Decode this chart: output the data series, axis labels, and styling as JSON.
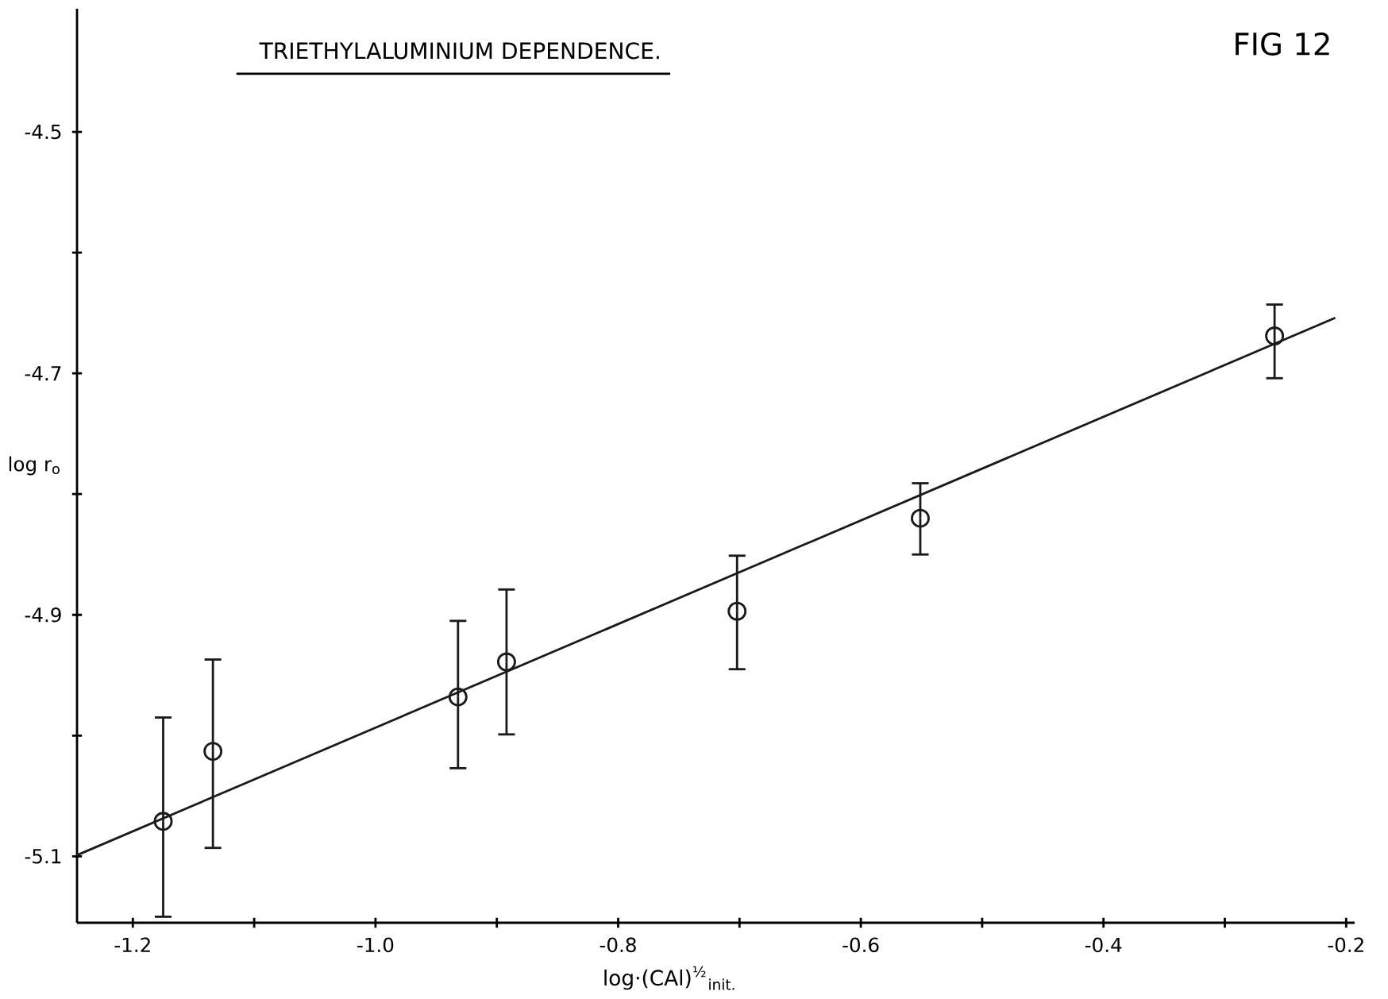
{
  "chart_data": {
    "type": "scatter",
    "title": "TRIETHYLALUMINIUM DEPENDENCE.",
    "xlabel": "log·(CAl)$^{½}$$_{init.}$",
    "ylabel": "log r$_{o}$",
    "annotations": [
      "FIG 12"
    ],
    "series": [
      {
        "color": "#1a1a1a",
        "marker": "circle",
        "x": [
          -1.175,
          -1.134,
          -0.932,
          -0.892,
          -0.702,
          -0.551,
          -0.259
        ],
        "values": [
          -5.071,
          -5.013,
          -4.968,
          -4.939,
          -4.897,
          -4.82,
          -4.669
        ],
        "errors": [
          [
            -5.15,
            -4.985
          ],
          [
            -5.093,
            -4.937
          ],
          [
            -5.027,
            -4.905
          ],
          [
            -4.999,
            -4.879
          ],
          [
            -4.945,
            -4.851
          ],
          [
            -4.85,
            -4.791
          ],
          [
            -4.704,
            -4.643
          ]
        ]
      },
      {
        "type": "line",
        "color": "#1a1a1a",
        "x": [
          -1.246,
          -0.209
        ],
        "values": [
          -5.099,
          -4.654
        ]
      }
    ],
    "xlim": [
      -1.246,
      -0.193
    ],
    "ylim": [
      -5.155,
      -4.398
    ],
    "xticks": [
      -1.2,
      {
        "value": -1.1,
        "label": null
      },
      {
        "value": -1.0,
        "label": "-1.0"
      },
      {
        "value": -0.9,
        "label": null
      },
      -0.8,
      {
        "value": -0.7,
        "label": null
      },
      -0.6,
      {
        "value": -0.5,
        "label": null
      },
      -0.4,
      {
        "value": -0.3,
        "label": null
      },
      -0.2
    ],
    "yticks": [
      -4.5,
      {
        "value": -4.6,
        "label": null
      },
      -4.7,
      {
        "value": -4.8,
        "label": null
      },
      -4.9,
      {
        "value": -5.0,
        "label": null
      },
      -5.1
    ],
    "grid": false
  }
}
